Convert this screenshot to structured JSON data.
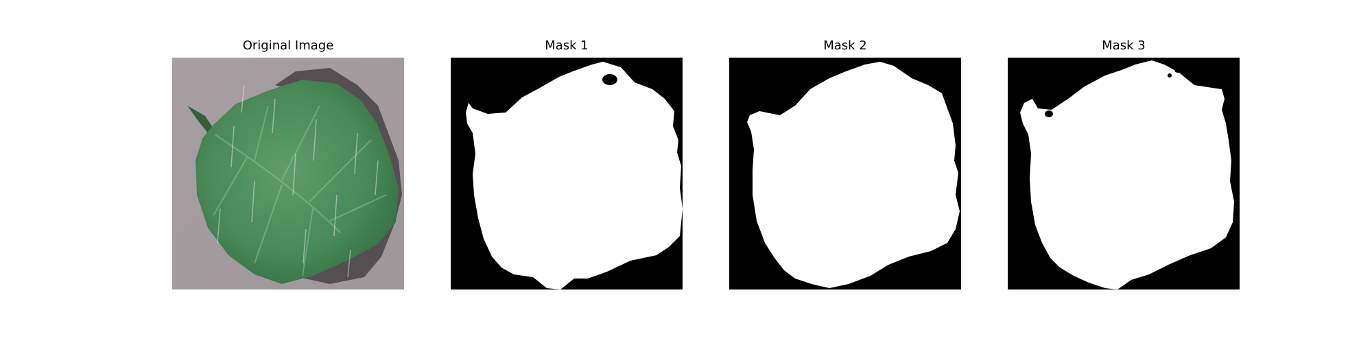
{
  "figure": {
    "panels": [
      {
        "title": "Original Image"
      },
      {
        "title": "Mask 1"
      },
      {
        "title": "Mask 2"
      },
      {
        "title": "Mask 3"
      }
    ]
  },
  "colors": {
    "background_gray": "#a49c9e",
    "leaf_green": "#4e8e5a",
    "leaf_dark": "#2f6a3d",
    "leaf_shadow": "#454041",
    "mask_foreground": "#ffffff",
    "mask_background": "#000000"
  }
}
